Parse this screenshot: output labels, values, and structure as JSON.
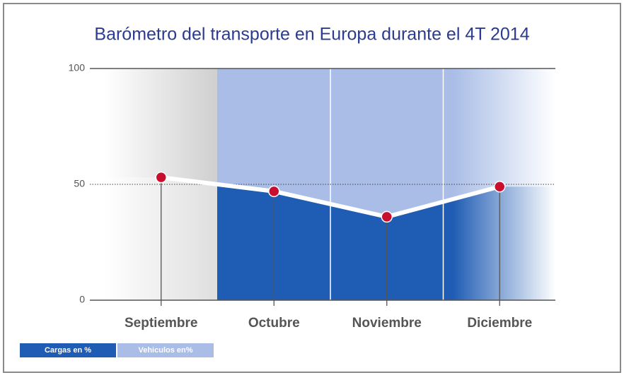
{
  "chart_data": {
    "type": "area",
    "title": "Barómetro del transporte en Europa durante el 4T 2014",
    "categories": [
      "Septiembre",
      "Octubre",
      "Noviembre",
      "Diciembre"
    ],
    "series": [
      {
        "name": "Cargas en %",
        "color": "#1f5cb4",
        "values": [
          53,
          47,
          36,
          49
        ]
      },
      {
        "name": "Vehiculos en%",
        "color": "#a9bde6",
        "values": [
          47,
          53,
          64,
          51
        ]
      }
    ],
    "stacked": true,
    "line_color": "#ffffff",
    "marker_color": "#c8102e",
    "ylim": [
      0,
      100
    ],
    "yticks": [
      0,
      50,
      100
    ]
  }
}
